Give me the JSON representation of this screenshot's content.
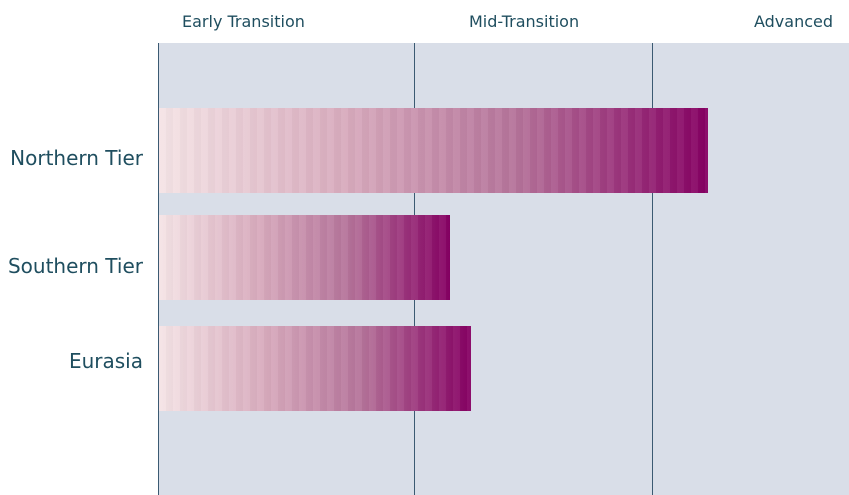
{
  "chart_data": {
    "type": "bar",
    "orientation": "horizontal",
    "stage_labels": [
      "Early Transition",
      "Mid-Transition",
      "Advanced"
    ],
    "categories": [
      "Northern Tier",
      "Southern Tier",
      "Eurasia"
    ],
    "values": [
      2.15,
      1.14,
      1.22
    ],
    "xlim": [
      0,
      2.7
    ],
    "colors": {
      "bar_start": "#f5e4e6",
      "bar_end": "#860063",
      "plot_background": "#d9dee8",
      "divider": "#3b5a72",
      "text": "#1f4e5f"
    }
  }
}
